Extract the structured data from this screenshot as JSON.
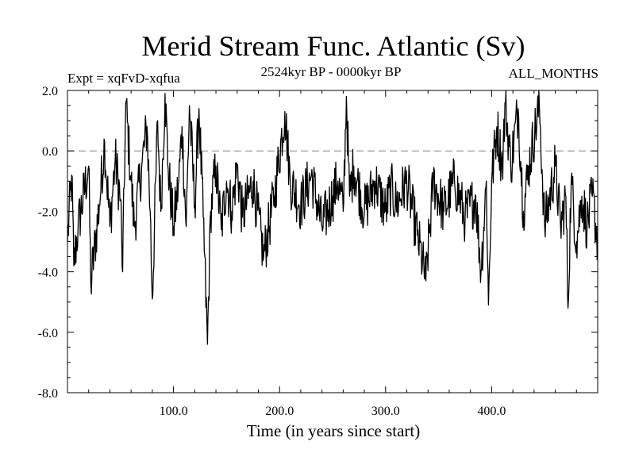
{
  "chart_data": {
    "type": "line",
    "title": "Merid Stream Func. Atlantic (Sv)",
    "subtitle": "2524kyr BP - 0000kyr BP",
    "left_label": "Expt = xqFvD-xqfua",
    "right_label": "ALL_MONTHS",
    "xlabel": "Time (in years since start)",
    "ylabel": "",
    "xlim": [
      0,
      500
    ],
    "ylim": [
      -8,
      2
    ],
    "xticks": [
      100,
      200,
      300,
      400
    ],
    "xtick_labels": [
      "100.0",
      "200.0",
      "300.0",
      "400.0"
    ],
    "yticks": [
      2,
      0,
      -2,
      -4,
      -6,
      -8
    ],
    "ytick_labels": [
      "2.0",
      "0.0",
      "-2.0",
      "-4.0",
      "-6.0",
      "-8.0"
    ],
    "reference_line": {
      "y": 0,
      "style": "dashed",
      "color": "#808080"
    },
    "line_color": "#000000",
    "key_points": [
      [
        0,
        -3.0
      ],
      [
        4,
        -0.8
      ],
      [
        6,
        -3.8
      ],
      [
        10,
        -2.5
      ],
      [
        20,
        -0.5
      ],
      [
        22,
        -4.4
      ],
      [
        30,
        -1.8
      ],
      [
        35,
        0.3
      ],
      [
        40,
        -2.5
      ],
      [
        45,
        -0.3
      ],
      [
        50,
        -1.6
      ],
      [
        52,
        -4.0
      ],
      [
        55,
        1.6
      ],
      [
        60,
        -1.0
      ],
      [
        63,
        -2.5
      ],
      [
        70,
        -0.5
      ],
      [
        75,
        0.8
      ],
      [
        78,
        -2.0
      ],
      [
        80,
        -4.9
      ],
      [
        85,
        1.0
      ],
      [
        88,
        -2.0
      ],
      [
        92,
        1.9
      ],
      [
        95,
        -0.6
      ],
      [
        100,
        -2.5
      ],
      [
        105,
        -1.0
      ],
      [
        108,
        0.8
      ],
      [
        112,
        -2.5
      ],
      [
        115,
        1.5
      ],
      [
        120,
        -1.8
      ],
      [
        124,
        1.4
      ],
      [
        128,
        -2.2
      ],
      [
        132,
        -6.4
      ],
      [
        135,
        -2.0
      ],
      [
        140,
        -0.5
      ],
      [
        145,
        -2.6
      ],
      [
        150,
        -1.0
      ],
      [
        155,
        -2.0
      ],
      [
        160,
        -0.5
      ],
      [
        165,
        -2.2
      ],
      [
        175,
        -1.0
      ],
      [
        185,
        -3.5
      ],
      [
        195,
        -1.5
      ],
      [
        205,
        1.3
      ],
      [
        210,
        -1.0
      ],
      [
        220,
        -1.8
      ],
      [
        230,
        -0.8
      ],
      [
        240,
        -2.5
      ],
      [
        250,
        -1.5
      ],
      [
        255,
        -1.0
      ],
      [
        260,
        -2.0
      ],
      [
        263,
        1.8
      ],
      [
        266,
        -1.5
      ],
      [
        270,
        -0.5
      ],
      [
        280,
        -2.0
      ],
      [
        290,
        -1.0
      ],
      [
        300,
        -2.0
      ],
      [
        305,
        -1.2
      ],
      [
        310,
        -1.8
      ],
      [
        320,
        -1.0
      ],
      [
        330,
        -2.8
      ],
      [
        338,
        -4.3
      ],
      [
        345,
        -1.0
      ],
      [
        355,
        -2.0
      ],
      [
        365,
        -1.0
      ],
      [
        375,
        -2.2
      ],
      [
        385,
        -1.5
      ],
      [
        390,
        -4.0
      ],
      [
        395,
        -1.0
      ],
      [
        397,
        -5.1
      ],
      [
        400,
        -1.0
      ],
      [
        405,
        0.8
      ],
      [
        410,
        -0.5
      ],
      [
        413,
        1.6
      ],
      [
        418,
        -0.5
      ],
      [
        425,
        1.4
      ],
      [
        430,
        -2.0
      ],
      [
        435,
        -0.5
      ],
      [
        445,
        1.5
      ],
      [
        450,
        -2.5
      ],
      [
        460,
        -0.5
      ],
      [
        465,
        -2.5
      ],
      [
        470,
        -1.5
      ],
      [
        472,
        -5.2
      ],
      [
        475,
        -1.0
      ],
      [
        480,
        -3.0
      ],
      [
        485,
        -1.5
      ],
      [
        490,
        -2.5
      ],
      [
        495,
        -1.5
      ],
      [
        500,
        -3.0
      ]
    ],
    "noise_amplitude": 0.9,
    "sample_step": 0.5
  }
}
